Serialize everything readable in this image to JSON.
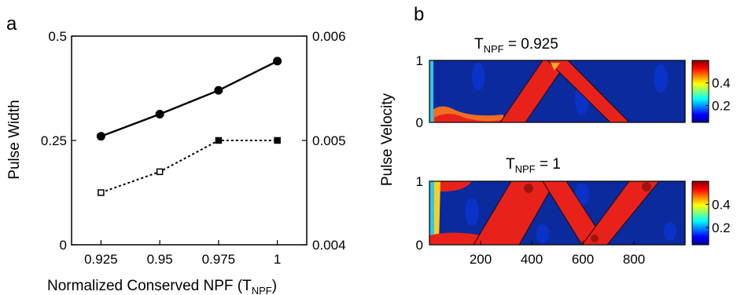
{
  "panels": {
    "a_label": "a",
    "b_label": "b"
  },
  "chart_data": [
    {
      "type": "line",
      "panel": "a",
      "xlabel_main": "Normalized Conserved NPF (T",
      "xlabel_sub": "NPF",
      "xlabel_end": ")",
      "ylabel": "Pulse Width",
      "y2label": "Pulse Velocity",
      "x": [
        0.925,
        0.95,
        0.975,
        1
      ],
      "x_tick_labels": [
        "0.925",
        "0.95",
        "0.975",
        "1"
      ],
      "xlim": [
        0.9125,
        1.0125
      ],
      "ylim": [
        0,
        0.5
      ],
      "y_ticks": [
        0,
        0.25,
        0.5
      ],
      "y_tick_labels": [
        "0",
        "0.25",
        "0.5"
      ],
      "y2lim": [
        0.004,
        0.006
      ],
      "y2_ticks": [
        0.004,
        0.005,
        0.006
      ],
      "y2_tick_labels": [
        "0.004",
        "0.005",
        "0.006"
      ],
      "grid": false,
      "series": [
        {
          "axis": "left",
          "style": "solid",
          "marker": "circle",
          "color": "#000000",
          "values": [
            0.26,
            0.313,
            0.37,
            0.44
          ]
        },
        {
          "axis": "right",
          "style": "dotted",
          "marker": "square",
          "color": "#000000",
          "values": [
            0.0045,
            0.0047,
            0.005,
            0.005
          ]
        }
      ]
    },
    {
      "type": "heatmap",
      "panel": "b",
      "title_main": "T",
      "title_sub": "NPF",
      "title_value": " = 0.925",
      "xlim": [
        0,
        1000
      ],
      "ylim": [
        0,
        1
      ],
      "y_ticks": [
        0,
        1
      ],
      "y_tick_labels": [
        "0",
        "1"
      ],
      "colorbar_ticks": [
        0.2,
        0.4
      ],
      "colorbar_tick_labels": [
        "0.2",
        "0.4"
      ],
      "colormap": "jet",
      "background_color": "#0a2a9e",
      "band_color": "#e8221a"
    },
    {
      "type": "heatmap",
      "panel": "b",
      "title_main": "T",
      "title_sub": "NPF",
      "title_value": " = 1",
      "xlim": [
        0,
        1000
      ],
      "ylim": [
        0,
        1
      ],
      "x_ticks": [
        200,
        400,
        600,
        800
      ],
      "x_tick_labels": [
        "200",
        "400",
        "600",
        "800"
      ],
      "y_ticks": [
        0,
        1
      ],
      "y_tick_labels": [
        "0",
        "1"
      ],
      "colorbar_ticks": [
        0.2,
        0.4
      ],
      "colorbar_tick_labels": [
        "0.2",
        "0.4"
      ],
      "colormap": "jet",
      "background_color": "#0a2a9e",
      "band_color": "#e8221a"
    }
  ]
}
